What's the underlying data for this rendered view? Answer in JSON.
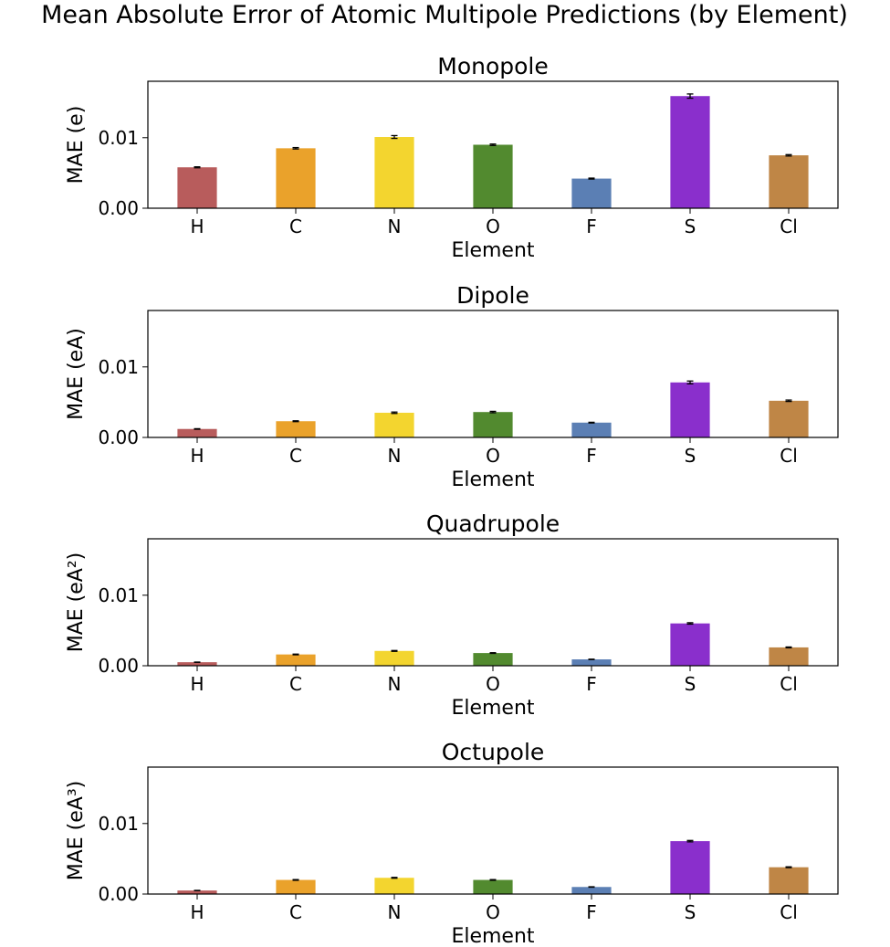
{
  "suptitle": "Mean Absolute Error of Atomic Multipole Predictions (by Element)",
  "colors": [
    "#b85c5c",
    "#eaa22b",
    "#f3d52f",
    "#528a2f",
    "#5b7fb4",
    "#8a2fcc",
    "#bf8646"
  ],
  "chart_data": [
    {
      "type": "bar",
      "title": "Monopole",
      "xlabel": "Element",
      "ylabel": "MAE (e)",
      "ylim": [
        0,
        0.018
      ],
      "yticks": [
        0.0,
        0.01
      ],
      "ytick_labels": [
        "0.00",
        "0.01"
      ],
      "categories": [
        "H",
        "C",
        "N",
        "O",
        "F",
        "S",
        "Cl"
      ],
      "values": [
        0.0058,
        0.0085,
        0.0101,
        0.009,
        0.0042,
        0.0159,
        0.0075
      ],
      "errors": [
        7e-05,
        0.0001,
        0.0002,
        0.0001,
        7e-05,
        0.0003,
        0.0001
      ],
      "grid": false
    },
    {
      "type": "bar",
      "title": "Dipole",
      "xlabel": "Element",
      "ylabel": "MAE (eA)",
      "ylim": [
        0,
        0.018
      ],
      "yticks": [
        0.0,
        0.01
      ],
      "ytick_labels": [
        "0.00",
        "0.01"
      ],
      "categories": [
        "H",
        "C",
        "N",
        "O",
        "F",
        "S",
        "Cl"
      ],
      "values": [
        0.0012,
        0.0023,
        0.0035,
        0.0036,
        0.0021,
        0.0078,
        0.0052
      ],
      "errors": [
        4e-05,
        6e-05,
        0.0001,
        0.0001,
        5e-05,
        0.0002,
        0.0001
      ],
      "grid": false
    },
    {
      "type": "bar",
      "title": "Quadrupole",
      "xlabel": "Element",
      "ylabel": "MAE (eA²)",
      "ylim": [
        0,
        0.018
      ],
      "yticks": [
        0.0,
        0.01
      ],
      "ytick_labels": [
        "0.00",
        "0.01"
      ],
      "categories": [
        "H",
        "C",
        "N",
        "O",
        "F",
        "S",
        "Cl"
      ],
      "values": [
        0.0005,
        0.0016,
        0.0021,
        0.0018,
        0.0009,
        0.006,
        0.0026
      ],
      "errors": [
        2e-05,
        5e-05,
        6e-05,
        5e-05,
        3e-05,
        0.0001,
        6e-05
      ],
      "grid": false
    },
    {
      "type": "bar",
      "title": "Octupole",
      "xlabel": "Element",
      "ylabel": "MAE (eA³)",
      "ylim": [
        0,
        0.018
      ],
      "yticks": [
        0.0,
        0.01
      ],
      "ytick_labels": [
        "0.00",
        "0.01"
      ],
      "categories": [
        "H",
        "C",
        "N",
        "O",
        "F",
        "S",
        "Cl"
      ],
      "values": [
        0.0005,
        0.002,
        0.0023,
        0.002,
        0.001,
        0.0075,
        0.0038
      ],
      "errors": [
        2e-05,
        5e-05,
        6e-05,
        5e-05,
        3e-05,
        0.0001,
        6e-05
      ],
      "grid": false
    }
  ]
}
